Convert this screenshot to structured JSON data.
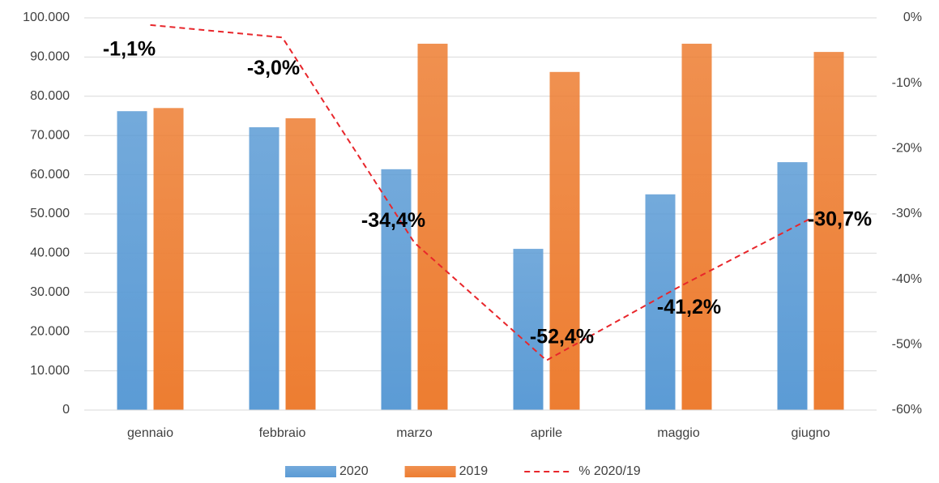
{
  "chart_data": {
    "type": "bar",
    "categories": [
      "gennaio",
      "febbraio",
      "marzo",
      "aprile",
      "maggio",
      "giugno"
    ],
    "series": [
      {
        "name": "2020",
        "color": "#5b9bd5",
        "values": [
          76200,
          72100,
          61400,
          41100,
          55000,
          63200
        ]
      },
      {
        "name": "2019",
        "color": "#ed7d31",
        "values": [
          77000,
          74400,
          93400,
          86200,
          93400,
          91300
        ]
      },
      {
        "name": "% 2020/19",
        "type": "line",
        "axis": "y2",
        "color": "#e8262b",
        "dashed": true,
        "values": [
          -1.1,
          -3.0,
          -34.4,
          -52.4,
          -41.2,
          -30.7
        ],
        "value_labels": [
          "-1,1%",
          "-3,0%",
          "-34,4%",
          "-52,4%",
          "-41,2%",
          "-30,7%"
        ]
      }
    ],
    "ylim": [
      0,
      100000
    ],
    "yticks": [
      0,
      {
        "value": 10000,
        "label": "10.000"
      },
      {
        "value": 20000,
        "label": "20.000"
      },
      {
        "value": 30000,
        "label": "30.000"
      },
      {
        "value": 40000,
        "label": "40.000"
      },
      {
        "value": 50000,
        "label": "50.000"
      },
      {
        "value": 60000,
        "label": "60.000"
      },
      {
        "value": 70000,
        "label": "70.000"
      },
      {
        "value": 80000,
        "label": "80.000"
      },
      {
        "value": 90000,
        "label": "90.000"
      },
      {
        "value": 100000,
        "label": "100.000"
      }
    ],
    "y2lim": [
      -60,
      0
    ],
    "y2ticks": [
      {
        "value": 0,
        "label": "0%"
      },
      {
        "value": -10,
        "label": "-10%"
      },
      {
        "value": -20,
        "label": "-20%"
      },
      {
        "value": -30,
        "label": "-30%"
      },
      {
        "value": -40,
        "label": "-40%"
      },
      {
        "value": -50,
        "label": "-50%"
      },
      {
        "value": -60,
        "label": "-60%"
      }
    ],
    "grid": true,
    "legend": "bottom"
  }
}
